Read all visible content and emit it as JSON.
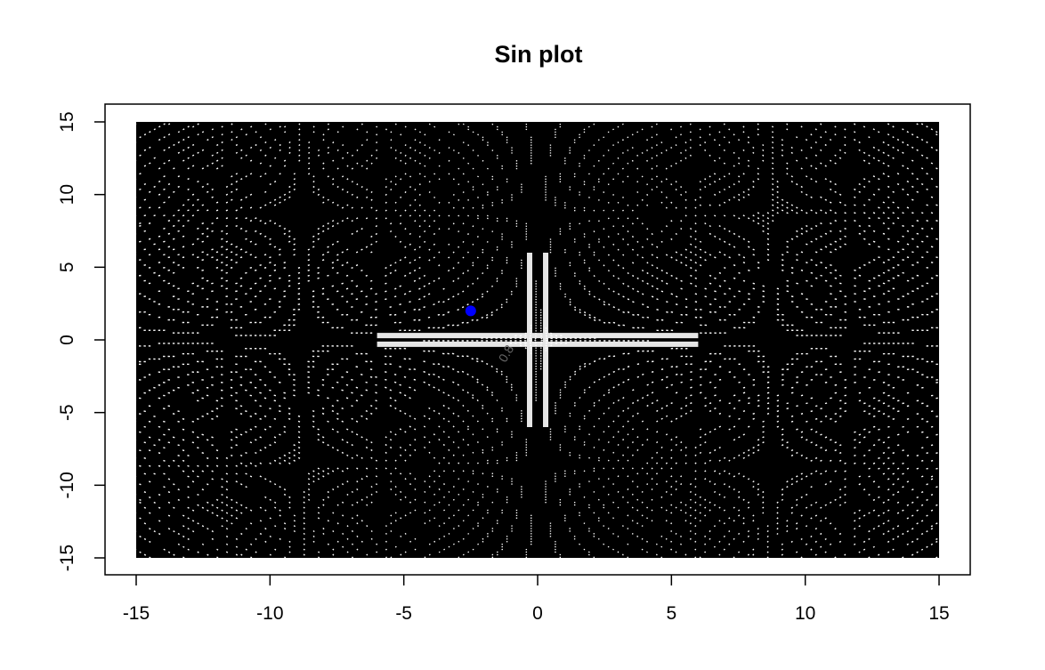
{
  "chart_data": {
    "type": "contour",
    "title": "Sin plot",
    "xlabel": "",
    "ylabel": "",
    "xlim": [
      -15,
      15
    ],
    "ylim": [
      -15,
      15
    ],
    "x_ticks": [
      -15,
      -10,
      -5,
      0,
      5,
      10,
      15
    ],
    "y_ticks": [
      -15,
      -10,
      -5,
      0,
      5,
      10,
      15
    ],
    "x_tick_labels": [
      "-15",
      "-10",
      "-5",
      "0",
      "5",
      "10",
      "15"
    ],
    "y_tick_labels": [
      "-15",
      "-10",
      "-5",
      "0",
      "5",
      "10",
      "15"
    ],
    "contour_label_visible": "0.8",
    "grid": false,
    "legend": "none",
    "line_color": "#000000",
    "background_color": "#000000",
    "highlight_point": {
      "x": -2.5,
      "y": 2.0,
      "color": "#0000ff"
    }
  }
}
